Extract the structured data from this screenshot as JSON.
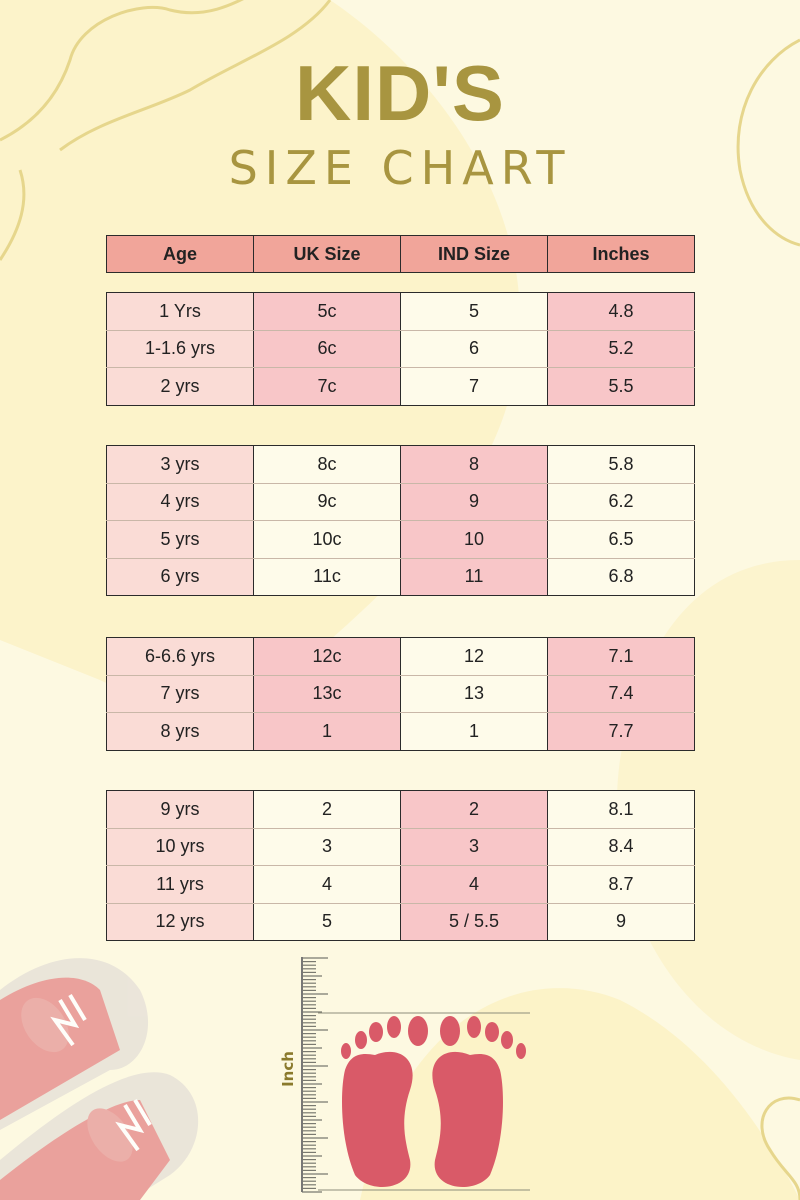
{
  "title": {
    "line1": "KID'S",
    "line2": "SIZE  CHART"
  },
  "colors": {
    "title": "#a89540",
    "header": "#f1a59a",
    "pink_cell": "#f8c6c8",
    "age_cell": "#fadcd6",
    "cream_cell": "#fefbea",
    "foot": "#d95a68",
    "background": "#fdf9e1"
  },
  "table": {
    "headers": [
      "Age",
      "UK Size",
      "IND Size",
      "Inches"
    ],
    "groups": [
      {
        "shading": [
          "age",
          "pink",
          "cream",
          "pink"
        ],
        "rows": [
          [
            "1 Yrs",
            "5c",
            "5",
            "4.8"
          ],
          [
            "1-1.6 yrs",
            "6c",
            "6",
            "5.2"
          ],
          [
            "2 yrs",
            "7c",
            "7",
            "5.5"
          ]
        ]
      },
      {
        "shading": [
          "age",
          "cream",
          "pink",
          "cream"
        ],
        "rows": [
          [
            "3 yrs",
            "8c",
            "8",
            "5.8"
          ],
          [
            "4 yrs",
            "9c",
            "9",
            "6.2"
          ],
          [
            "5 yrs",
            "10c",
            "10",
            "6.5"
          ],
          [
            "6 yrs",
            "11c",
            "11",
            "6.8"
          ]
        ]
      },
      {
        "shading": [
          "age",
          "pink",
          "cream",
          "pink"
        ],
        "rows": [
          [
            "6-6.6 yrs",
            "12c",
            "12",
            "7.1"
          ],
          [
            "7 yrs",
            "13c",
            "13",
            "7.4"
          ],
          [
            "8 yrs",
            "1",
            "1",
            "7.7"
          ]
        ]
      },
      {
        "shading": [
          "age",
          "cream",
          "pink",
          "cream"
        ],
        "rows": [
          [
            "9 yrs",
            "2",
            "2",
            "8.1"
          ],
          [
            "10 yrs",
            "3",
            "3",
            "8.4"
          ],
          [
            "11 yrs",
            "4",
            "4",
            "8.7"
          ],
          [
            "12 yrs",
            "5",
            "5 / 5.5",
            "9"
          ]
        ]
      }
    ]
  },
  "illustration": {
    "ruler_label": "Inch",
    "icons": [
      "sneakers-icon",
      "ruler-icon",
      "footprints-icon"
    ]
  }
}
